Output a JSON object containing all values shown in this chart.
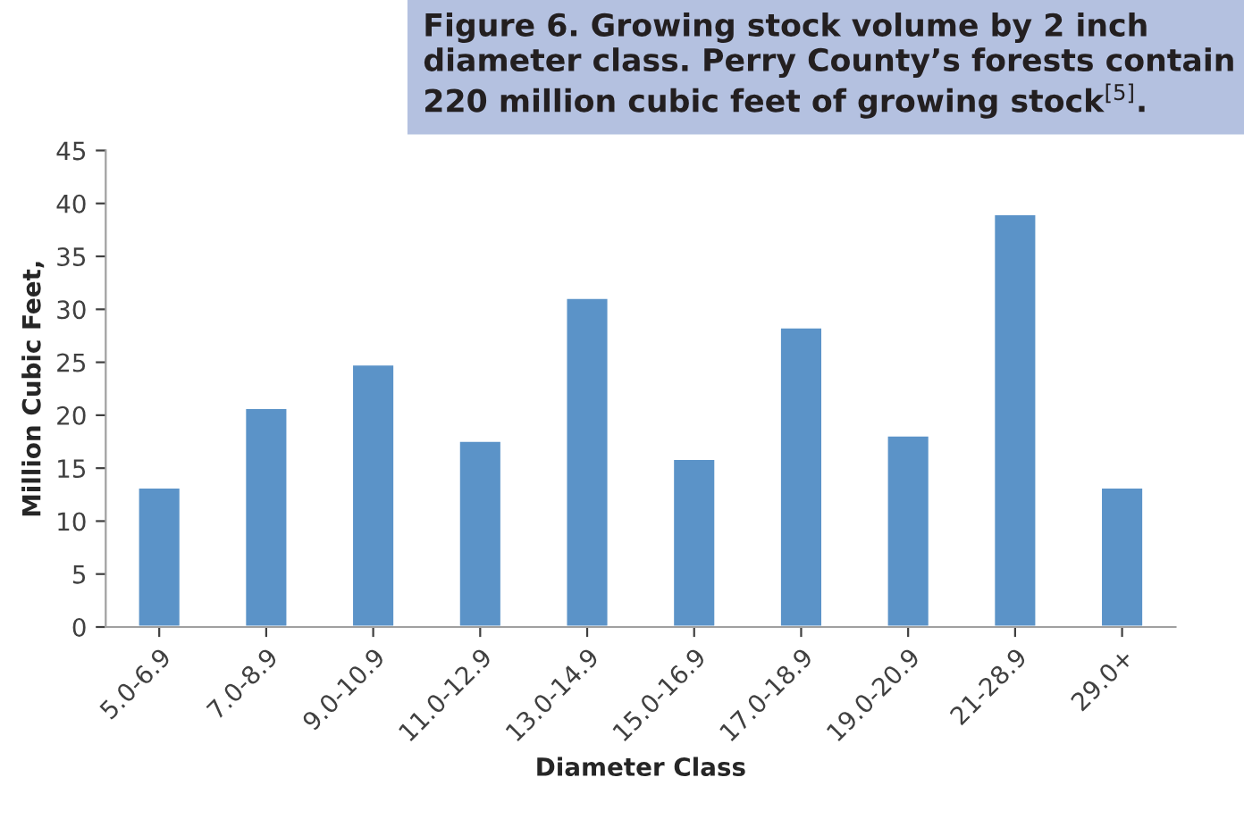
{
  "chart_data": {
    "type": "bar",
    "title": "Figure 6. Growing stock volume by 2 inch diameter class. Perry County’s forests contain 220 million cubic feet of growing stock$^{[5]}$.",
    "xlabel": "Diameter Class",
    "ylabel": "Million Cubic Feet,",
    "categories": [
      "5.0-6.9",
      "7.0-8.9",
      "9.0-10.9",
      "11.0-12.9",
      "13.0-14.9",
      "15.0-16.9",
      "17.0-18.9",
      "19.0-20.9",
      "21-28.9",
      "29.0+"
    ],
    "values": [
      13.2,
      20.7,
      24.8,
      17.6,
      31.1,
      15.9,
      28.3,
      18.1,
      39.0,
      13.2
    ],
    "color": "#5b93c8",
    "ylim": [
      0,
      45
    ],
    "yticks": [
      0,
      5,
      10,
      15,
      20,
      25,
      30,
      35,
      40,
      45
    ],
    "grid": false
  }
}
